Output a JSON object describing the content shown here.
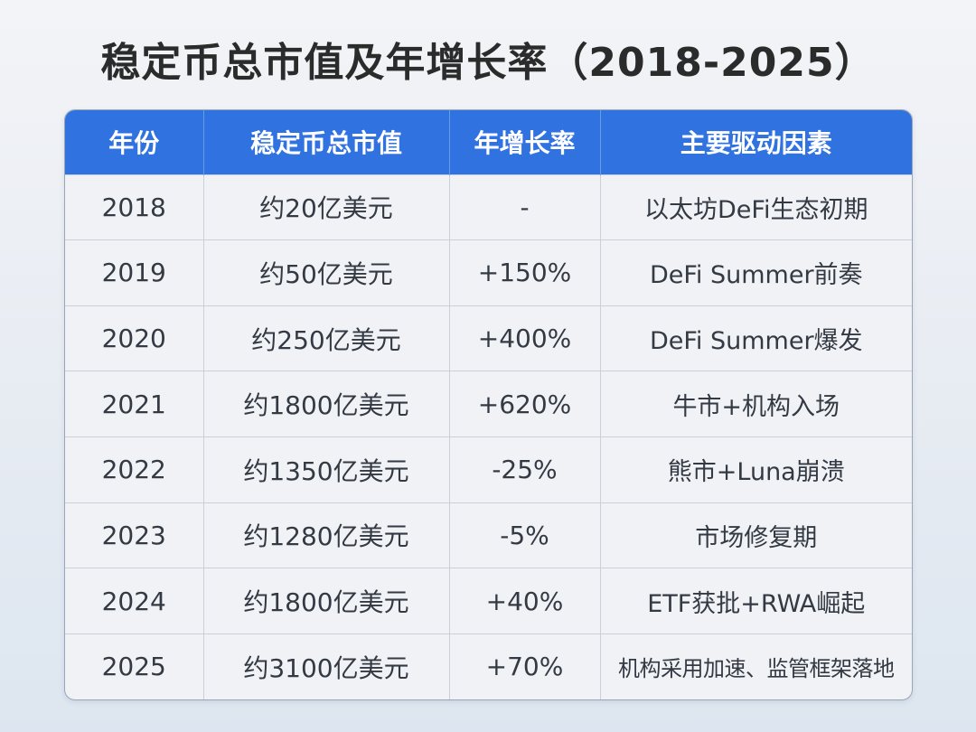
{
  "title": "稳定币总市值及年增长率（2018-2025）",
  "header": {
    "year": "年份",
    "market_cap": "稳定币总市值",
    "growth": "年增长率",
    "drivers": "主要驱动因素"
  },
  "rows": [
    {
      "year": "2018",
      "market_cap": "约20亿美元",
      "growth": "-",
      "drivers": "以太坊DeFi生态初期"
    },
    {
      "year": "2019",
      "market_cap": "约50亿美元",
      "growth": "+150%",
      "drivers": "DeFi Summer前奏"
    },
    {
      "year": "2020",
      "market_cap": "约250亿美元",
      "growth": "+400%",
      "drivers": "DeFi Summer爆发"
    },
    {
      "year": "2021",
      "market_cap": "约1800亿美元",
      "growth": "+620%",
      "drivers": "牛市+机构入场"
    },
    {
      "year": "2022",
      "market_cap": "约1350亿美元",
      "growth": "-25%",
      "drivers": "熊市+Luna崩溃"
    },
    {
      "year": "2023",
      "market_cap": "约1280亿美元",
      "growth": "-5%",
      "drivers": "市场修复期"
    },
    {
      "year": "2024",
      "market_cap": "约1800亿美元",
      "growth": "+40%",
      "drivers": "ETF获批+RWA崛起"
    },
    {
      "year": "2025",
      "market_cap": "约3100亿美元",
      "growth": "+70%",
      "drivers": "机构采用加速、监管框架落地"
    }
  ],
  "colors": {
    "header_bg": "#2f72e0",
    "header_text": "#ffffff",
    "body_text": "#333a44",
    "title_text": "#2b2b2b"
  }
}
